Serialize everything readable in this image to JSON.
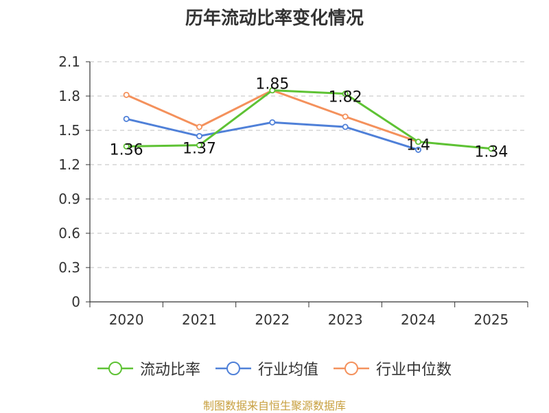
{
  "chart_data": {
    "type": "line",
    "title": "历年流动比率变化情况",
    "categories": [
      "2020",
      "2021",
      "2022",
      "2023",
      "2024",
      "2025"
    ],
    "ylim": [
      0,
      2.1
    ],
    "yticks": [
      "0",
      "0.3",
      "0.6",
      "0.9",
      "1.2",
      "1.5",
      "1.8",
      "2.1"
    ],
    "grid": true,
    "legend_position": "bottom",
    "series": [
      {
        "name": "流动比率",
        "color": "#5ec234",
        "values": [
          1.36,
          1.37,
          1.85,
          1.82,
          1.4,
          1.34
        ],
        "show_labels": true
      },
      {
        "name": "行业均值",
        "color": "#4f80d8",
        "values": [
          1.6,
          1.45,
          1.57,
          1.53,
          1.33,
          null
        ],
        "show_labels": false
      },
      {
        "name": "行业中位数",
        "color": "#f4915c",
        "values": [
          1.81,
          1.53,
          1.85,
          1.62,
          1.4,
          null
        ],
        "show_labels": false
      }
    ]
  },
  "source_text": "制图数据来自恒生聚源数据库"
}
